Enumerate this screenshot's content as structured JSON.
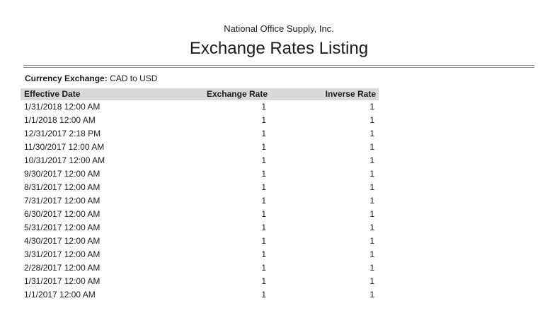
{
  "header": {
    "company": "National Office Supply, Inc.",
    "title": "Exchange Rates Listing"
  },
  "filter": {
    "label": "Currency Exchange:",
    "value": "CAD to USD"
  },
  "table": {
    "columns": [
      "Effective Date",
      "Exchange Rate",
      "Inverse Rate"
    ],
    "rows": [
      [
        "1/31/2018 12:00 AM",
        "1",
        "1"
      ],
      [
        "1/1/2018 12:00 AM",
        "1",
        "1"
      ],
      [
        "12/31/2017 2:18 PM",
        "1",
        "1"
      ],
      [
        "11/30/2017 12:00 AM",
        "1",
        "1"
      ],
      [
        "10/31/2017 12:00 AM",
        "1",
        "1"
      ],
      [
        "9/30/2017 12:00 AM",
        "1",
        "1"
      ],
      [
        "8/31/2017 12:00 AM",
        "1",
        "1"
      ],
      [
        "7/31/2017 12:00 AM",
        "1",
        "1"
      ],
      [
        "6/30/2017 12:00 AM",
        "1",
        "1"
      ],
      [
        "5/31/2017 12:00 AM",
        "1",
        "1"
      ],
      [
        "4/30/2017 12:00 AM",
        "1",
        "1"
      ],
      [
        "3/31/2017 12:00 AM",
        "1",
        "1"
      ],
      [
        "2/28/2017 12:00 AM",
        "1",
        "1"
      ],
      [
        "1/31/2017 12:00 AM",
        "1",
        "1"
      ],
      [
        "1/1/2017 12:00 AM",
        "1",
        "1"
      ]
    ]
  },
  "colors": {
    "header_band": "#d9d9d9",
    "rule": "#8c8c8c",
    "text": "#1b1b1b",
    "background": "#ffffff"
  }
}
